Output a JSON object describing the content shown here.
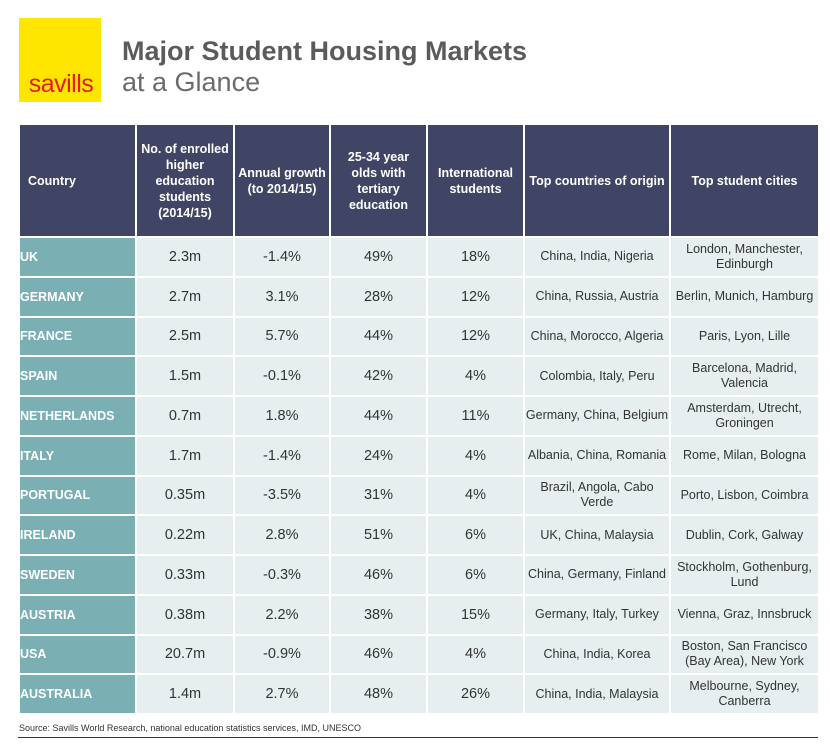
{
  "logo": {
    "text": "savills"
  },
  "title": {
    "line1": "Major Student Housing Markets",
    "line2": "at a Glance"
  },
  "table": {
    "headers": [
      "Country",
      "No. of enrolled higher education students (2014/15)",
      "Annual growth (to 2014/15)",
      "25-34 year olds with tertiary education",
      "International students",
      "Top countries of origin",
      "Top student cities"
    ],
    "rows": [
      [
        "UK",
        "2.3m",
        "-1.4%",
        "49%",
        "18%",
        "China, India, Nigeria",
        "London, Manchester, Edinburgh"
      ],
      [
        "GERMANY",
        "2.7m",
        "3.1%",
        "28%",
        "12%",
        "China, Russia, Austria",
        "Berlin, Munich, Hamburg"
      ],
      [
        "FRANCE",
        "2.5m",
        "5.7%",
        "44%",
        "12%",
        "China, Morocco, Algeria",
        "Paris, Lyon, Lille"
      ],
      [
        "SPAIN",
        "1.5m",
        "-0.1%",
        "42%",
        "4%",
        "Colombia, Italy, Peru",
        "Barcelona, Madrid, Valencia"
      ],
      [
        "NETHERLANDS",
        "0.7m",
        "1.8%",
        "44%",
        "11%",
        "Germany, China, Belgium",
        "Amsterdam, Utrecht, Groningen"
      ],
      [
        "ITALY",
        "1.7m",
        "-1.4%",
        "24%",
        "4%",
        "Albania, China, Romania",
        "Rome, Milan, Bologna"
      ],
      [
        "PORTUGAL",
        "0.35m",
        "-3.5%",
        "31%",
        "4%",
        "Brazil, Angola, Cabo Verde",
        "Porto, Lisbon, Coimbra"
      ],
      [
        "IRELAND",
        "0.22m",
        "2.8%",
        "51%",
        "6%",
        "UK, China, Malaysia",
        "Dublin, Cork, Galway"
      ],
      [
        "SWEDEN",
        "0.33m",
        "-0.3%",
        "46%",
        "6%",
        "China, Germany, Finland",
        "Stockholm, Gothenburg, Lund"
      ],
      [
        "AUSTRIA",
        "0.38m",
        "2.2%",
        "38%",
        "15%",
        "Germany, Italy, Turkey",
        "Vienna, Graz, Innsbruck"
      ],
      [
        "USA",
        "20.7m",
        "-0.9%",
        "46%",
        "4%",
        "China, India, Korea",
        "Boston, San Francisco (Bay Area), New York"
      ],
      [
        "AUSTRALIA",
        "1.4m",
        "2.7%",
        "48%",
        "26%",
        "China, India, Malaysia",
        "Melbourne, Sydney, Canberra"
      ]
    ]
  },
  "source": "Source: Savills World Research, national education statistics services, IMD, UNESCO",
  "colors": {
    "header_bg": "#404565",
    "country_bg": "#7aafb3",
    "cell_bg": "#e6eeef",
    "logo_bg": "#ffe600",
    "logo_text": "#e31b23"
  }
}
